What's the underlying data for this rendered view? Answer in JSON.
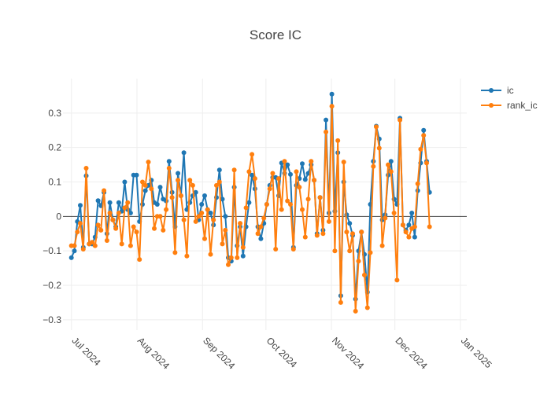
{
  "chart_data": {
    "type": "line",
    "title": "Score IC",
    "xlabel": "",
    "ylabel": "",
    "x_start": "2024-07-01",
    "xlim": [
      "2024-06-27",
      "2025-01-04"
    ],
    "ylim": [
      -0.33,
      0.4
    ],
    "y_ticks": [
      -0.3,
      -0.2,
      -0.1,
      0,
      0.1,
      0.2,
      0.3
    ],
    "y_tick_labels": [
      "−0.3",
      "−0.2",
      "−0.1",
      "0",
      "0.1",
      "0.2",
      "0.3"
    ],
    "x_ticks": [
      {
        "date": "2024-07-01",
        "label": "Jul 2024"
      },
      {
        "date": "2024-08-01",
        "label": "Aug 2024"
      },
      {
        "date": "2024-09-01",
        "label": "Sep 2024"
      },
      {
        "date": "2024-10-01",
        "label": "Oct 2024"
      },
      {
        "date": "2024-11-01",
        "label": "Nov 2024"
      },
      {
        "date": "2024-12-01",
        "label": "Dec 2024"
      },
      {
        "date": "2025-01-01",
        "label": "Jan 2025"
      }
    ],
    "legend_position": "top-right",
    "series": [
      {
        "name": "ic",
        "color": "#1f77b4",
        "values": [
          -0.12,
          -0.1,
          -0.015,
          0.032,
          -0.09,
          0.118,
          -0.08,
          -0.08,
          -0.06,
          0.046,
          0.031,
          0.07,
          -0.05,
          0.04,
          -0.01,
          -0.03,
          0.04,
          0.015,
          0.1,
          0.02,
          0.01,
          0.12,
          0.12,
          -0.015,
          0.035,
          0.075,
          0.09,
          0.105,
          0.04,
          0.035,
          0.085,
          0.05,
          0.045,
          0.16,
          0.07,
          -0.03,
          0.125,
          0.06,
          0.185,
          0.02,
          0.04,
          0.06,
          0.07,
          -0.01,
          0.035,
          0.06,
          0.02,
          0.01,
          -0.025,
          0.055,
          0.135,
          0.05,
          0.0,
          -0.12,
          -0.13,
          0.085,
          -0.085,
          -0.03,
          -0.115,
          -0.03,
          0.04,
          0.12,
          0.08,
          -0.03,
          -0.065,
          -0.02,
          0.035,
          0.09,
          0.113,
          0.113,
          0.06,
          0.155,
          0.125,
          0.15,
          0.122,
          -0.09,
          0.09,
          0.11,
          0.153,
          0.107,
          0.125,
          0.15,
          0.105,
          -0.05,
          0.055,
          -0.04,
          0.28,
          0.01,
          0.355,
          0.015,
          0.185,
          -0.23,
          0.1,
          0.005,
          -0.02,
          -0.055,
          -0.24,
          -0.1,
          -0.045,
          -0.11,
          -0.22,
          0.035,
          0.16,
          0.262,
          0.225,
          -0.01,
          0.005,
          0.12,
          0.16,
          0.05,
          0.035,
          0.285,
          -0.025,
          -0.04,
          -0.025,
          0.01,
          -0.06,
          0.075,
          0.155,
          0.25,
          0.16,
          0.07
        ]
      },
      {
        "name": "rank_ic",
        "color": "#ff7f0e",
        "values": [
          -0.085,
          -0.085,
          -0.045,
          -0.02,
          -0.095,
          0.14,
          -0.08,
          -0.075,
          -0.085,
          -0.025,
          -0.04,
          0.075,
          -0.07,
          0.01,
          -0.01,
          -0.035,
          0.01,
          -0.08,
          0.025,
          0.04,
          -0.085,
          -0.03,
          -0.045,
          -0.125,
          0.1,
          0.09,
          0.158,
          0.08,
          -0.035,
          0.0,
          0.0,
          -0.04,
          0.02,
          0.14,
          0.055,
          -0.105,
          0.105,
          0.06,
          -0.01,
          -0.115,
          0.105,
          0.09,
          -0.015,
          0.0,
          0.01,
          -0.065,
          0.02,
          -0.11,
          -0.01,
          0.09,
          0.1,
          -0.08,
          -0.04,
          -0.14,
          -0.12,
          0.135,
          -0.12,
          -0.02,
          -0.09,
          0.025,
          0.13,
          0.18,
          0.11,
          -0.05,
          -0.03,
          -0.005,
          0.035,
          0.08,
          0.125,
          -0.095,
          0.11,
          0.02,
          0.16,
          0.045,
          0.035,
          -0.095,
          0.13,
          0.085,
          0.02,
          -0.06,
          0.05,
          0.16,
          0.105,
          -0.055,
          0.055,
          -0.05,
          0.245,
          -0.015,
          0.32,
          -0.1,
          0.22,
          -0.25,
          0.158,
          -0.045,
          -0.1,
          -0.05,
          -0.275,
          -0.13,
          -0.045,
          -0.17,
          -0.265,
          -0.105,
          0.145,
          0.26,
          0.198,
          -0.085,
          -0.005,
          0.15,
          0.13,
          0.01,
          -0.185,
          0.28,
          -0.025,
          -0.045,
          -0.06,
          -0.035,
          -0.03,
          0.095,
          0.195,
          0.235,
          0.155,
          -0.03
        ]
      }
    ]
  }
}
